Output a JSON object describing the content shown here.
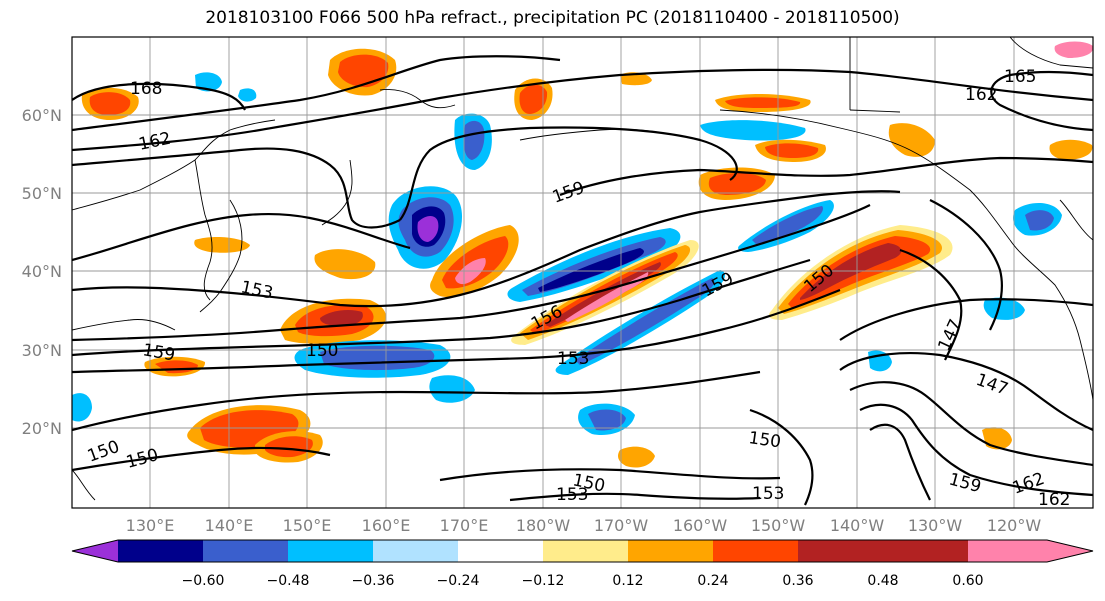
{
  "title": "2018103100 F066 500 hPa refract., precipitation PC (2018110400 - 2018110500)",
  "lat_labels": [
    "20°N",
    "30°N",
    "40°N",
    "50°N",
    "60°N"
  ],
  "lon_labels": [
    "130°E",
    "140°E",
    "150°E",
    "160°E",
    "170°E",
    "180°W",
    "170°W",
    "160°W",
    "150°W",
    "140°W",
    "130°W",
    "120°W"
  ],
  "contour_labels": [
    "168",
    "162",
    "165",
    "162",
    "159",
    "156",
    "159",
    "150",
    "153",
    "150",
    "159",
    "153",
    "147",
    "147",
    "150",
    "150",
    "150",
    "153",
    "150",
    "153",
    "159",
    "162",
    "162"
  ],
  "colorbar": {
    "colors": [
      "#9b30d9",
      "#00008b",
      "#3a5fcd",
      "#00bfff",
      "#b0e2ff",
      "#ffffff",
      "#ffec8b",
      "#ffa500",
      "#ff4500",
      "#b22222",
      "#ff82ab"
    ],
    "tick_labels": [
      "−0.60",
      "−0.48",
      "−0.36",
      "−0.24",
      "−0.12",
      "0.12",
      "0.24",
      "0.36",
      "0.48",
      "0.60"
    ]
  }
}
